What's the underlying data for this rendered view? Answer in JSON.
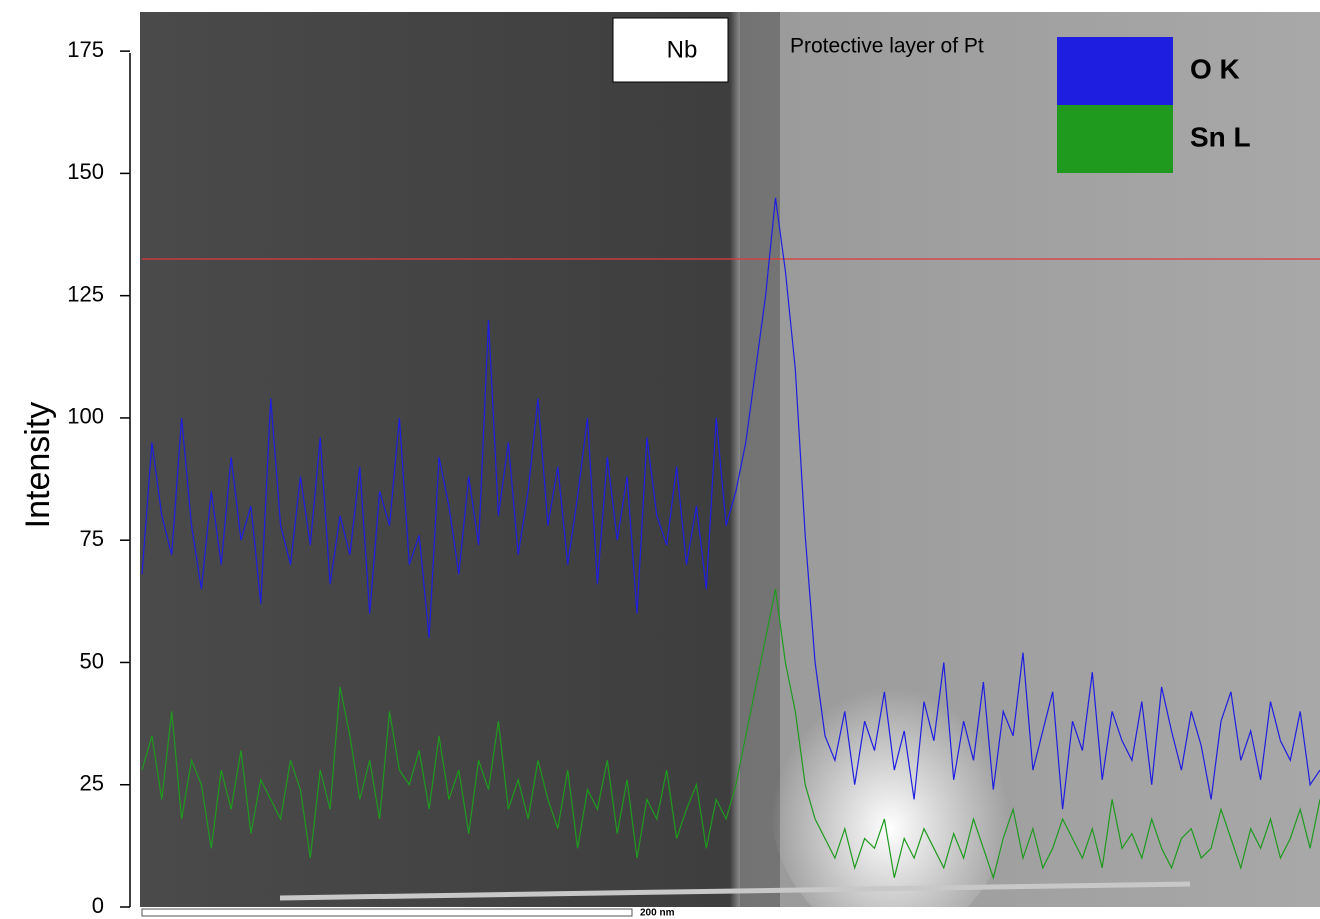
{
  "chart_data": {
    "type": "line",
    "y_label": "Intensity",
    "ylim": [
      0,
      183
    ],
    "yticks": [
      0,
      25,
      50,
      75,
      100,
      125,
      150,
      175
    ],
    "region_label": "Nb",
    "annotation": "Protective layer of Pt",
    "scale_bar": "200 nm",
    "hline": {
      "value": 132.5,
      "color": "#e03a3a"
    },
    "series": [
      {
        "name": "O K",
        "color": "#1e1ee0",
        "values": [
          68,
          95,
          80,
          72,
          100,
          78,
          65,
          85,
          70,
          92,
          75,
          82,
          62,
          104,
          78,
          70,
          88,
          74,
          96,
          66,
          80,
          72,
          90,
          60,
          85,
          78,
          100,
          70,
          76,
          55,
          92,
          82,
          68,
          88,
          74,
          120,
          80,
          95,
          72,
          85,
          104,
          78,
          90,
          70,
          84,
          100,
          66,
          92,
          75,
          88,
          60,
          96,
          80,
          74,
          90,
          70,
          82,
          65,
          100,
          78,
          85,
          95,
          110,
          125,
          145,
          130,
          110,
          76,
          50,
          35,
          30,
          40,
          25,
          38,
          32,
          44,
          28,
          36,
          22,
          42,
          34,
          50,
          26,
          38,
          30,
          46,
          24,
          40,
          35,
          52,
          28,
          36,
          44,
          20,
          38,
          32,
          48,
          26,
          40,
          34,
          30,
          42,
          25,
          45,
          36,
          28,
          40,
          33,
          22,
          38,
          44,
          30,
          36,
          26,
          42,
          34,
          30,
          40,
          25,
          28
        ]
      },
      {
        "name": "Sn L",
        "color": "#1f9a1f",
        "values": [
          28,
          35,
          22,
          40,
          18,
          30,
          25,
          12,
          28,
          20,
          32,
          15,
          26,
          22,
          18,
          30,
          24,
          10,
          28,
          20,
          45,
          35,
          22,
          30,
          18,
          40,
          28,
          25,
          32,
          20,
          35,
          22,
          28,
          15,
          30,
          24,
          38,
          20,
          26,
          18,
          30,
          22,
          16,
          28,
          12,
          24,
          20,
          30,
          15,
          26,
          10,
          22,
          18,
          28,
          14,
          20,
          25,
          12,
          22,
          18,
          25,
          35,
          45,
          55,
          65,
          50,
          40,
          25,
          18,
          14,
          10,
          16,
          8,
          14,
          12,
          18,
          6,
          14,
          10,
          16,
          12,
          8,
          15,
          10,
          18,
          12,
          6,
          14,
          20,
          10,
          16,
          8,
          12,
          18,
          14,
          10,
          16,
          8,
          22,
          12,
          15,
          10,
          18,
          12,
          8,
          14,
          16,
          10,
          12,
          20,
          14,
          8,
          16,
          12,
          18,
          10,
          14,
          20,
          12,
          22
        ]
      }
    ]
  }
}
